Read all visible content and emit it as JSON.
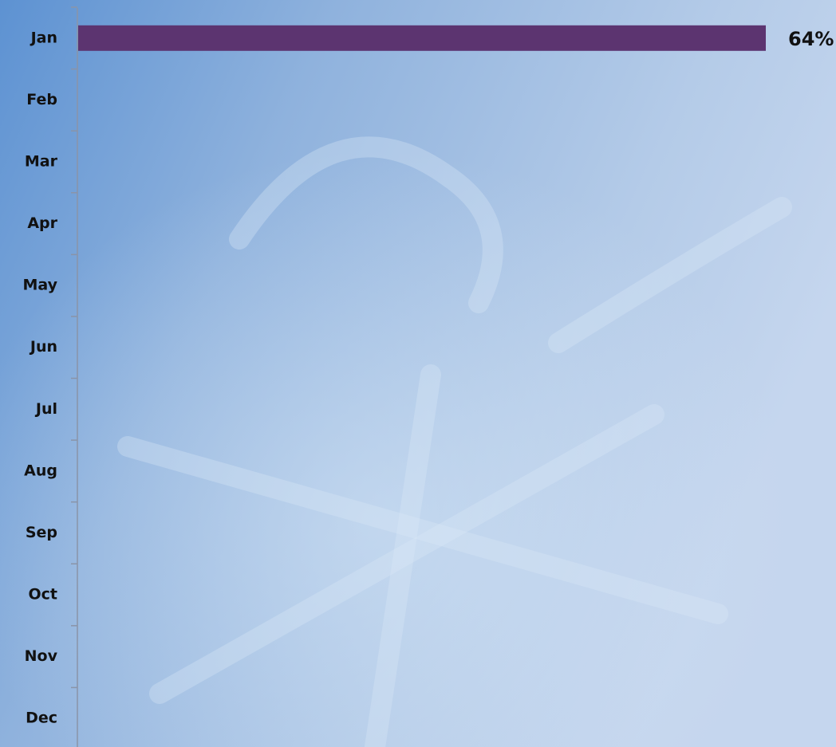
{
  "chart_data": {
    "type": "bar",
    "orientation": "horizontal",
    "categories": [
      "Jan",
      "Feb",
      "Mar",
      "Apr",
      "May",
      "Jun",
      "Jul",
      "Aug",
      "Sep",
      "Oct",
      "Nov",
      "Dec"
    ],
    "values": [
      64,
      null,
      null,
      null,
      null,
      null,
      null,
      null,
      null,
      null,
      null,
      null
    ],
    "value_labels": [
      "64%",
      null,
      null,
      null,
      null,
      null,
      null,
      null,
      null,
      null,
      null,
      null
    ],
    "color": "#5c3470"
  }
}
